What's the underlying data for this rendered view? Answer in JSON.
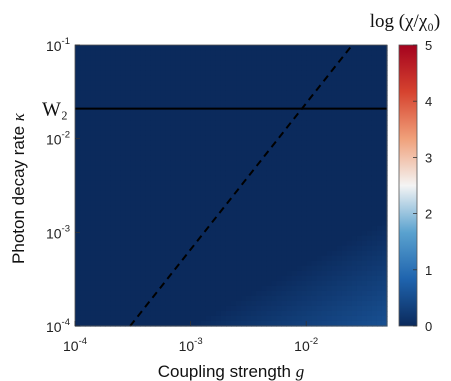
{
  "chart_data": {
    "type": "heatmap",
    "colorbar_title": "log (χ/χ₀)",
    "colorbar_ticks": [
      "0",
      "1",
      "2",
      "3",
      "4",
      "5"
    ],
    "color_range": [
      0,
      5
    ],
    "colormap": [
      "#0b2a5c",
      "#1f64ae",
      "#5aa2cf",
      "#f4f4f4",
      "#f0a07a",
      "#d6432f",
      "#a4021e"
    ],
    "x": {
      "label_text": "Coupling strength ",
      "label_symbol": "g",
      "scale": "log",
      "range": [
        0.0001,
        0.05
      ],
      "ticks": [
        {
          "value": 0.0001,
          "base": "10",
          "exp": "-4"
        },
        {
          "value": 0.001,
          "base": "10",
          "exp": "-3"
        },
        {
          "value": 0.01,
          "base": "10",
          "exp": "-2"
        }
      ]
    },
    "y": {
      "label_text": "Photon decay rate ",
      "label_symbol": "κ",
      "scale": "log",
      "range": [
        0.0001,
        0.1
      ],
      "ticks": [
        {
          "value": 0.0001,
          "base": "10",
          "exp": "-4"
        },
        {
          "value": 0.001,
          "base": "10",
          "exp": "-3"
        },
        {
          "value": 0.01,
          "base": "10",
          "exp": "-2"
        },
        {
          "value": 0.1,
          "base": "10",
          "exp": "-1"
        }
      ]
    },
    "annotations": [
      {
        "type": "hline",
        "y": 0.0209,
        "label": "W₂",
        "style": "solid"
      },
      {
        "type": "line",
        "style": "dashed",
        "points": [
          [
            0.0003,
            0.0001
          ],
          [
            0.025,
            0.1
          ]
        ]
      }
    ]
  }
}
